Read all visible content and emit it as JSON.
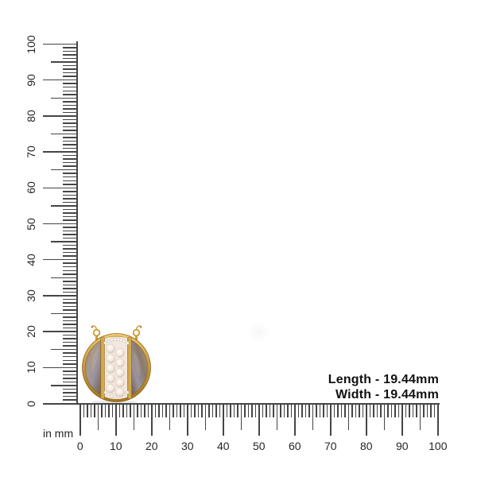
{
  "page": {
    "background": "#ffffff"
  },
  "rulers": {
    "unit_label": "in mm",
    "unit": "mm",
    "min": 0,
    "max": 100,
    "major_step": 10,
    "mid_step": 5,
    "minor_step": 1,
    "vertical_labels": [
      "0",
      "10",
      "20",
      "30",
      "40",
      "50",
      "60",
      "70",
      "80",
      "90",
      "100"
    ],
    "horizontal_labels": [
      "0",
      "10",
      "20",
      "30",
      "40",
      "50",
      "60",
      "70",
      "80",
      "90",
      "100"
    ],
    "tick_color": "#454545",
    "label_color": "#262626"
  },
  "measurements": {
    "length_label": "Length - 19.44mm",
    "width_label": "Width - 19.44mm",
    "text_color": "#111111"
  },
  "product": {
    "description": "Round gold-tone pendant with two curled ear hooks, a centre panel of staggered rose-white moonstone cabochons between gold bars, crystal-set top and bottom arcs, and grey labradorite half-moon side stones",
    "colors": {
      "gold-light": "#edc96f",
      "gold-main": "#cf9d3c",
      "gold-dark": "#a0741f",
      "gold-edge": "#8a651c",
      "pearl-light": "#fffdf9",
      "pearl-mid": "#f4e8de",
      "pearl-shadow": "#cdbaae",
      "panel": "#f2e8df",
      "stone-light": "#a99a8d",
      "stone-mid": "#8a7a6d",
      "stone-dark": "#6a5c50",
      "stone-sheen": "#9b93a0",
      "crystal": "#f4f0ea",
      "crystal-edge": "#c9c2b8"
    }
  }
}
